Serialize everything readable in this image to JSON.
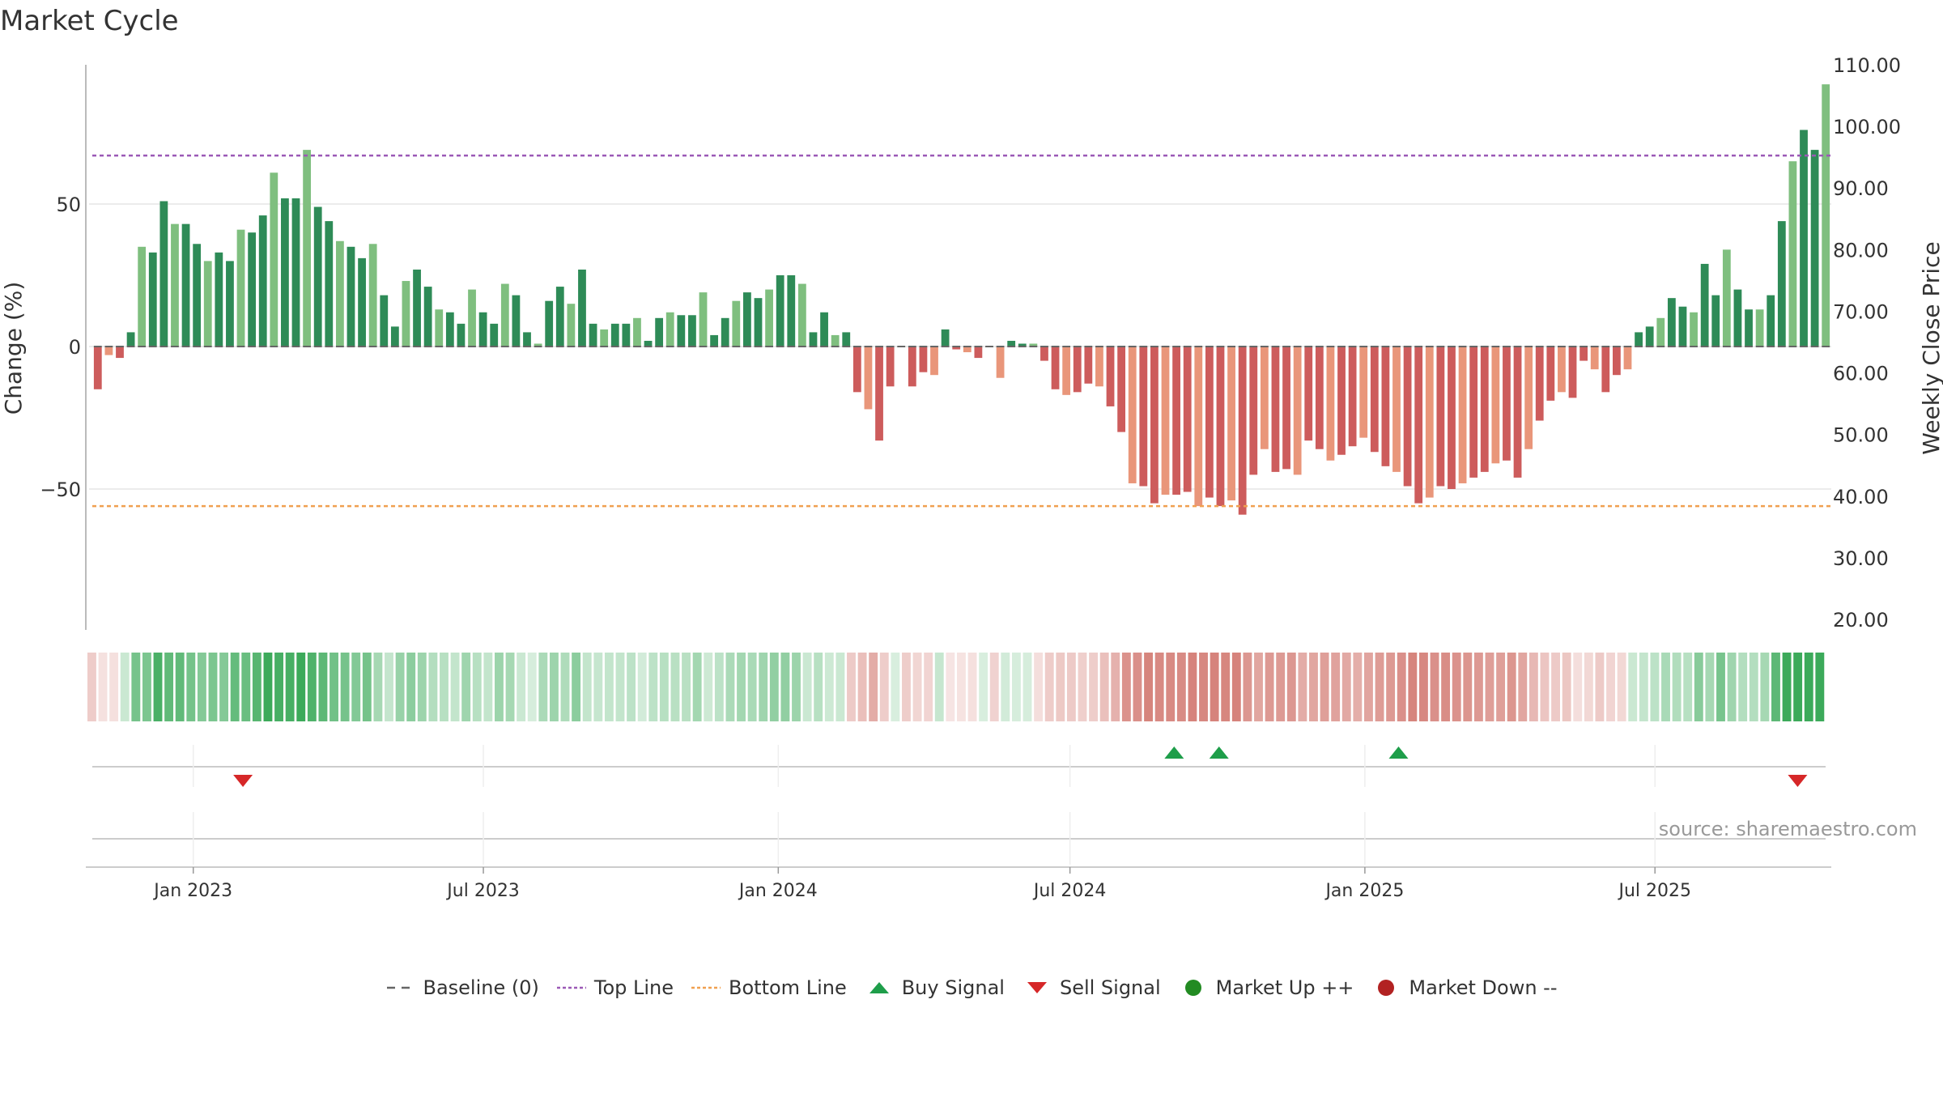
{
  "title": "Market Cycle",
  "source": "source: sharemaestro.com",
  "colors": {
    "up_strong": "#2e8b57",
    "up_light": "#7fbf7f",
    "down_strong": "#cd5c5c",
    "down_light": "#e9967a",
    "top_line": "#9b59b6",
    "bottom_line": "#f0a050",
    "buy": "#1e9e4a",
    "sell": "#d62728",
    "market_up": "#228b22",
    "market_down": "#b22222",
    "grid": "#e6e6e6",
    "baseline": "#666666"
  },
  "legend": [
    {
      "label": "Baseline (0)",
      "icon": "dash-line",
      "color": "#666666"
    },
    {
      "label": "Top Line",
      "icon": "dotted-line",
      "color": "#9b59b6"
    },
    {
      "label": "Bottom Line",
      "icon": "dotted-line",
      "color": "#f0a050"
    },
    {
      "label": "Buy Signal",
      "icon": "triangle-up",
      "color": "#1e9e4a"
    },
    {
      "label": "Sell Signal",
      "icon": "triangle-down",
      "color": "#d62728"
    },
    {
      "label": "Market Up ++",
      "icon": "circle",
      "color": "#228b22"
    },
    {
      "label": "Market Down --",
      "icon": "circle",
      "color": "#b22222"
    }
  ],
  "chart_data": {
    "type": "bar",
    "ylabel": "Change (%)",
    "y2label": "Weekly Close Price",
    "ylim": [
      -99,
      100
    ],
    "yticks": [
      -50,
      0,
      50
    ],
    "ytick_labels": [
      "−50",
      "0",
      "50"
    ],
    "y2ticks": [
      20,
      30,
      40,
      50,
      60,
      70,
      80,
      90,
      100,
      110
    ],
    "y2tick_labels": [
      "20.00",
      "30.00",
      "40.00",
      "50.00",
      "60.00",
      "70.00",
      "80.00",
      "90.00",
      "100.00",
      "110.00"
    ],
    "y2lim": [
      20,
      110
    ],
    "top_line": 67,
    "bottom_line": -56,
    "x_start": "2022-10-30",
    "x_end": "2025-10-19",
    "xticks": [
      "2023-01-01",
      "2023-07-01",
      "2024-01-01",
      "2024-07-01",
      "2025-01-01",
      "2025-07-01"
    ],
    "xtick_labels": [
      "Jan 2023",
      "Jul 2023",
      "Jan 2024",
      "Jul 2024",
      "Jan 2025",
      "Jul 2025"
    ],
    "first_week": "2022-10-30",
    "values": [
      -15,
      -3,
      -4,
      5,
      35,
      33,
      51,
      43,
      43,
      36,
      30,
      33,
      30,
      41,
      40,
      46,
      61,
      52,
      52,
      69,
      49,
      44,
      37,
      35,
      31,
      36,
      18,
      7,
      23,
      27,
      21,
      13,
      12,
      8,
      20,
      12,
      8,
      22,
      18,
      5,
      1,
      16,
      21,
      15,
      27,
      8,
      6,
      8,
      8,
      10,
      2,
      10,
      12,
      11,
      11,
      19,
      4,
      10,
      16,
      19,
      17,
      20,
      25,
      25,
      22,
      5,
      12,
      4,
      5,
      -16,
      -22,
      -33,
      -14,
      0,
      -14,
      -9,
      -10,
      6,
      -1,
      -2,
      -4,
      0,
      -11,
      2,
      1,
      1,
      -5,
      -15,
      -17,
      -16,
      -13,
      -14,
      -21,
      -30,
      -48,
      -49,
      -55,
      -52,
      -52,
      -51,
      -56,
      -53,
      -56,
      -54,
      -59,
      -45,
      -36,
      -44,
      -43,
      -45,
      -33,
      -36,
      -40,
      -38,
      -35,
      -32,
      -37,
      -42,
      -44,
      -49,
      -55,
      -53,
      -49,
      -50,
      -48,
      -46,
      -44,
      -41,
      -40,
      -46,
      -36,
      -26,
      -19,
      -16,
      -18,
      -5,
      -8,
      -16,
      -10,
      -8,
      5,
      7,
      10,
      17,
      14,
      12,
      29,
      18,
      34,
      20,
      13,
      13,
      18,
      44,
      65,
      76,
      69,
      92
    ],
    "signals": [
      {
        "type": "sell",
        "date": "2023-02-01"
      },
      {
        "type": "buy",
        "date": "2024-09-04"
      },
      {
        "type": "buy",
        "date": "2024-10-02"
      },
      {
        "type": "buy",
        "date": "2025-01-22"
      },
      {
        "type": "sell",
        "date": "2025-09-28"
      }
    ],
    "grid": true,
    "legend_position": "bottom"
  }
}
